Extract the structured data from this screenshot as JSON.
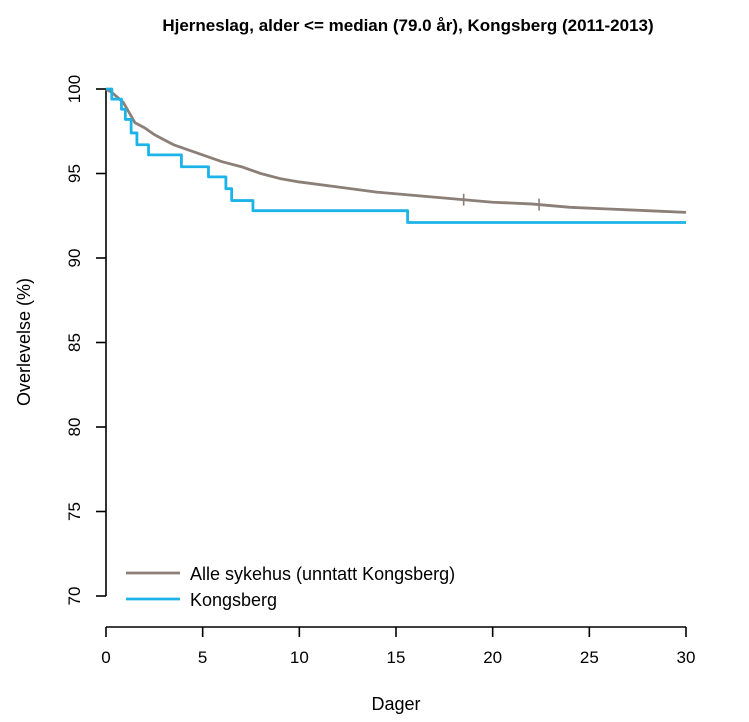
{
  "chart_data": {
    "type": "line",
    "title": "Hjerneslag, alder <= median (79.0 år), Kongsberg (2011-2013)",
    "xlabel": "Dager",
    "ylabel": "Overlevelse (%)",
    "xlim": [
      0,
      30
    ],
    "ylim": [
      70,
      100
    ],
    "xticks": [
      0,
      5,
      10,
      15,
      20,
      25,
      30
    ],
    "yticks": [
      70,
      75,
      80,
      85,
      90,
      95,
      100
    ],
    "grid": false,
    "legend_position": "bottom-left",
    "series": [
      {
        "name": "Alle sykehus (unntatt Kongsberg)",
        "color": "#8c7f78",
        "step": false,
        "x": [
          0,
          0.3,
          0.6,
          0.9,
          1.2,
          1.5,
          2,
          2.5,
          3,
          3.5,
          4,
          5,
          6,
          7,
          8,
          9,
          10,
          12,
          14,
          16,
          18,
          20,
          22,
          24,
          26,
          28,
          30
        ],
        "y": [
          100,
          99.8,
          99.5,
          99.2,
          98.6,
          98.0,
          97.7,
          97.3,
          97.0,
          96.7,
          96.5,
          96.1,
          95.7,
          95.4,
          95.0,
          94.7,
          94.5,
          94.2,
          93.9,
          93.7,
          93.5,
          93.3,
          93.2,
          93.0,
          92.9,
          92.8,
          92.7
        ],
        "censor_marks": [
          18.5,
          22.4
        ]
      },
      {
        "name": "Kongsberg",
        "color": "#1cb4e8",
        "step": true,
        "x": [
          0,
          0.3,
          0.8,
          1.0,
          1.3,
          1.6,
          2.2,
          3.9,
          5.3,
          6.2,
          6.5,
          7.6,
          15.6,
          30
        ],
        "y": [
          100,
          99.4,
          98.8,
          98.2,
          97.4,
          96.7,
          96.1,
          95.4,
          94.8,
          94.1,
          93.4,
          92.8,
          92.1,
          92.1
        ]
      }
    ]
  }
}
